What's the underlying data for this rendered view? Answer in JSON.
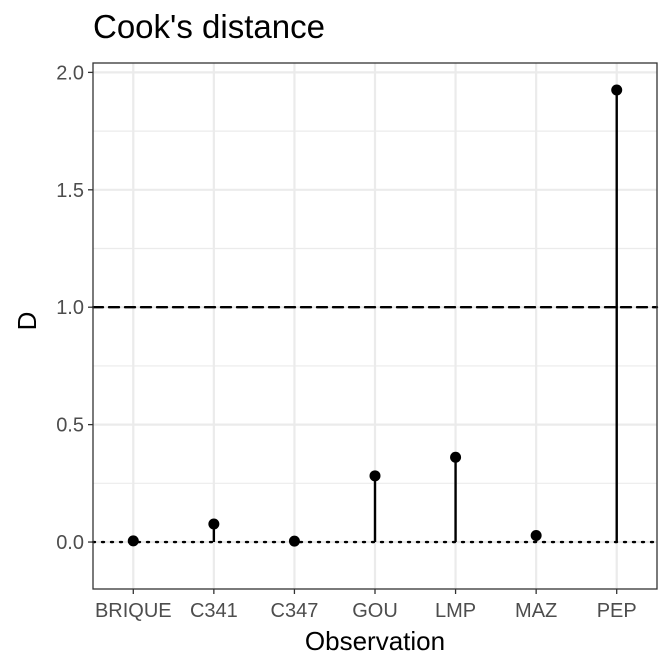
{
  "chart_data": {
    "type": "lollipop",
    "title": "Cook's distance",
    "xlabel": "Observation",
    "ylabel": "D",
    "categories": [
      "BRIQUE",
      "C341",
      "C347",
      "GOU",
      "LMP",
      "MAZ",
      "PEP"
    ],
    "values": [
      0.005,
      0.077,
      0.004,
      0.282,
      0.361,
      0.028,
      1.925
    ],
    "ylim": [
      -0.2,
      2.04
    ],
    "yticks": [
      0.0,
      0.5,
      1.0,
      1.5,
      2.0
    ],
    "ytick_labels": [
      "0.0",
      "0.5",
      "1.0",
      "1.5",
      "2.0"
    ],
    "reference_lines": [
      {
        "y": 1.0,
        "style": "dashed"
      },
      {
        "y": 0.0,
        "style": "dotted"
      }
    ],
    "grid": true,
    "legend": "none",
    "colors": {
      "marks": "#000000",
      "grid": "#ebebeb",
      "panel_border": "#333333",
      "tick_text": "#4d4d4d"
    }
  }
}
